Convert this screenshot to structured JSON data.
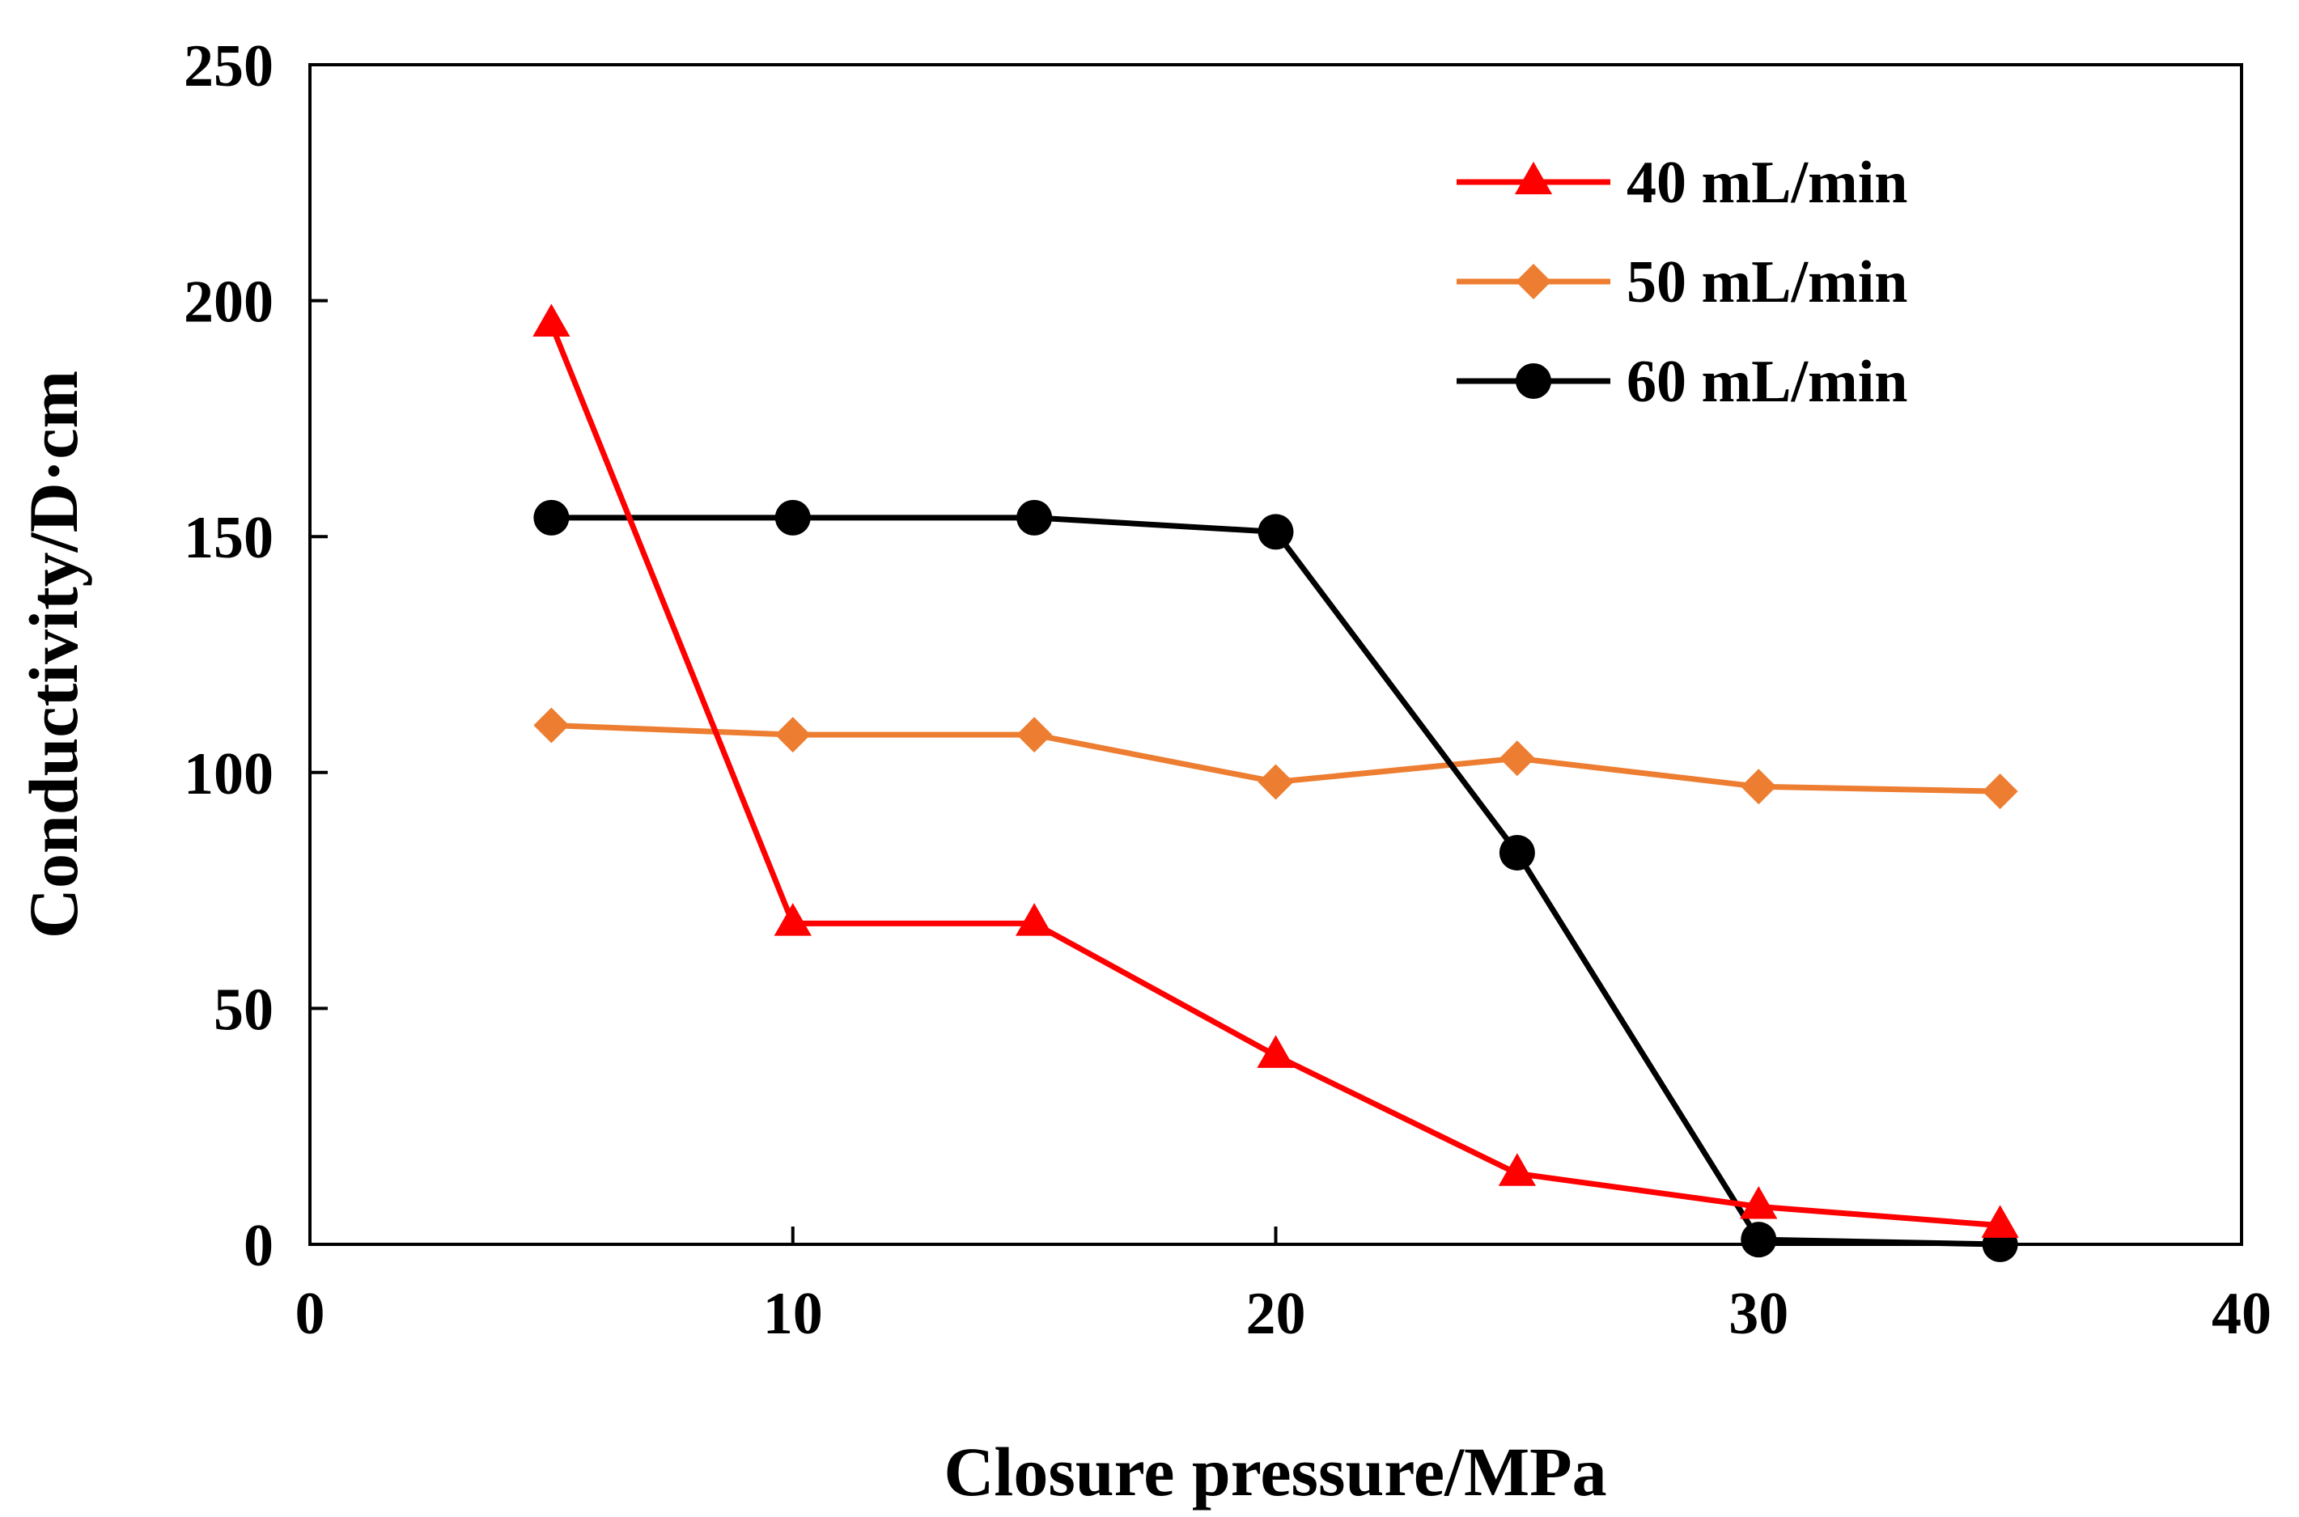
{
  "chart_data": {
    "type": "line",
    "title": "",
    "xlabel": "Closure pressure/MPa",
    "ylabel": "Conductivity/D·cm",
    "xlim": [
      0,
      40
    ],
    "ylim": [
      0,
      250
    ],
    "xticks": [
      0,
      10,
      20,
      30,
      40
    ],
    "yticks": [
      0,
      50,
      100,
      150,
      200,
      250
    ],
    "grid": false,
    "legend_position": "top-right",
    "x": [
      5,
      10,
      15,
      20,
      25,
      30,
      35
    ],
    "series": [
      {
        "name": "40 mL/min",
        "color": "#ff0000",
        "marker": "triangle",
        "values": [
          195,
          68,
          68,
          40,
          15,
          8,
          4
        ]
      },
      {
        "name": "50 mL/min",
        "color": "#ed7d31",
        "marker": "diamond",
        "values": [
          110,
          108,
          108,
          98,
          103,
          97,
          96
        ]
      },
      {
        "name": "60 mL/min",
        "color": "#000000",
        "marker": "circle",
        "values": [
          154,
          154,
          154,
          151,
          83,
          1,
          0
        ]
      }
    ]
  }
}
